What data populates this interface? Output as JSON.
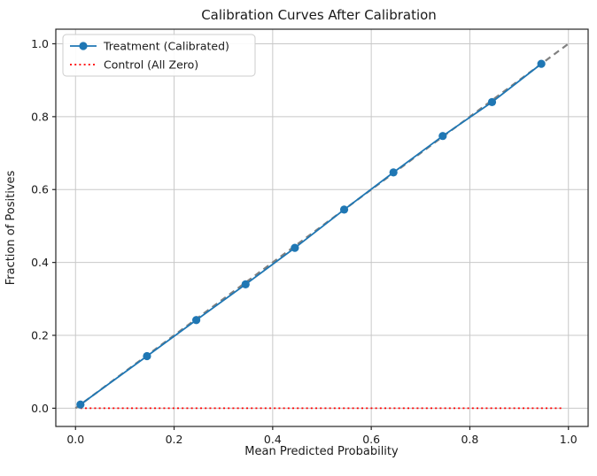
{
  "chart_data": {
    "type": "line",
    "title": "Calibration Curves After Calibration",
    "xlabel": "Mean Predicted Probability",
    "ylabel": "Fraction of Positives",
    "xlim": [
      -0.04,
      1.04
    ],
    "ylim": [
      -0.05,
      1.04
    ],
    "xticks": [
      0.0,
      0.2,
      0.4,
      0.6,
      0.8,
      1.0
    ],
    "yticks": [
      0.0,
      0.2,
      0.4,
      0.6,
      0.8,
      1.0
    ],
    "grid": true,
    "grid_color": "#c8c8c8",
    "spine_color": "#262626",
    "legend_position": "upper-left",
    "series": [
      {
        "name": "Treatment (Calibrated)",
        "color": "#1f77b4",
        "style": "solid-markers",
        "in_legend": true,
        "x": [
          0.01,
          0.145,
          0.245,
          0.345,
          0.445,
          0.545,
          0.645,
          0.745,
          0.845,
          0.945
        ],
        "y": [
          0.01,
          0.143,
          0.242,
          0.34,
          0.44,
          0.545,
          0.647,
          0.747,
          0.84,
          0.945
        ]
      },
      {
        "name": "Control (All Zero)",
        "color": "#ff0000",
        "style": "dotted",
        "in_legend": true,
        "x": [
          0.01,
          0.99
        ],
        "y": [
          0.0,
          0.0
        ]
      },
      {
        "name": "perfect-calibration-reference",
        "color": "#808080",
        "style": "dashed",
        "in_legend": false,
        "x": [
          0.0,
          1.0
        ],
        "y": [
          0.0,
          1.0
        ]
      }
    ]
  }
}
